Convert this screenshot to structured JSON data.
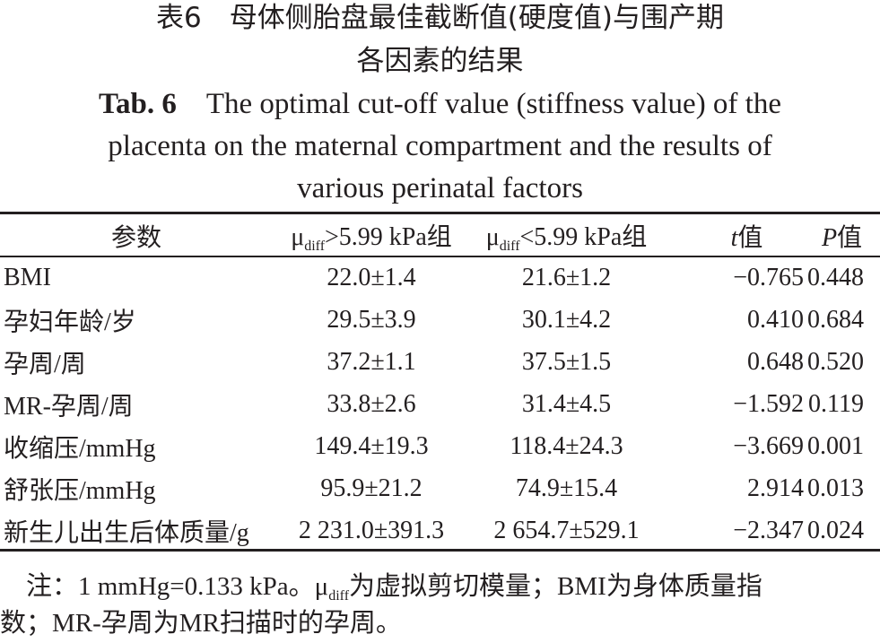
{
  "title_cn": [
    "表6　母体侧胎盘最佳截断值(硬度值)与围产期",
    "各因素的结果"
  ],
  "title_en": {
    "label": "Tab. 6",
    "lines": [
      "The optimal cut-off value (stiffness value) of the",
      "placenta on the maternal compartment and the results of",
      "various perinatal factors"
    ]
  },
  "table": {
    "headers": {
      "param": "参数",
      "mu": "μ",
      "sub": "diff",
      "g1": ">5.99 kPa组",
      "g2": "<5.99 kPa组",
      "t_sym": "t",
      "t_rest": "值",
      "p_sym": "P",
      "p_rest": "值"
    },
    "rows": [
      {
        "param": "BMI",
        "g1": "22.0±1.4",
        "g2": "21.6±1.2",
        "t": "−0.765",
        "p": "0.448"
      },
      {
        "param": "孕妇年龄/岁",
        "g1": "29.5±3.9",
        "g2": "30.1±4.2",
        "t": "0.410",
        "p": "0.684"
      },
      {
        "param": "孕周/周",
        "g1": "37.2±1.1",
        "g2": "37.5±1.5",
        "t": "0.648",
        "p": "0.520"
      },
      {
        "param": "MR-孕周/周",
        "g1": "33.8±2.6",
        "g2": "31.4±4.5",
        "t": "−1.592",
        "p": "0.119"
      },
      {
        "param": "收缩压/mmHg",
        "g1": "149.4±19.3",
        "g2": "118.4±24.3",
        "t": "−3.669",
        "p": "0.001"
      },
      {
        "param": "舒张压/mmHg",
        "g1": "95.9±21.2",
        "g2": "74.9±15.4",
        "t": "2.914",
        "p": "0.013"
      },
      {
        "param": "新生儿出生后体质量/g",
        "g1": "2 231.0±391.3",
        "g2": "2 654.7±529.1",
        "t": "−2.347",
        "p": "0.024"
      }
    ]
  },
  "note": {
    "prefix": "注：1 mmHg=0.133 kPa。",
    "mu": "μ",
    "sub": "diff",
    "rest": "为虚拟剪切模量；BMI为身体质量指",
    "line2": "数；MR-孕周为MR扫描时的孕周。"
  }
}
